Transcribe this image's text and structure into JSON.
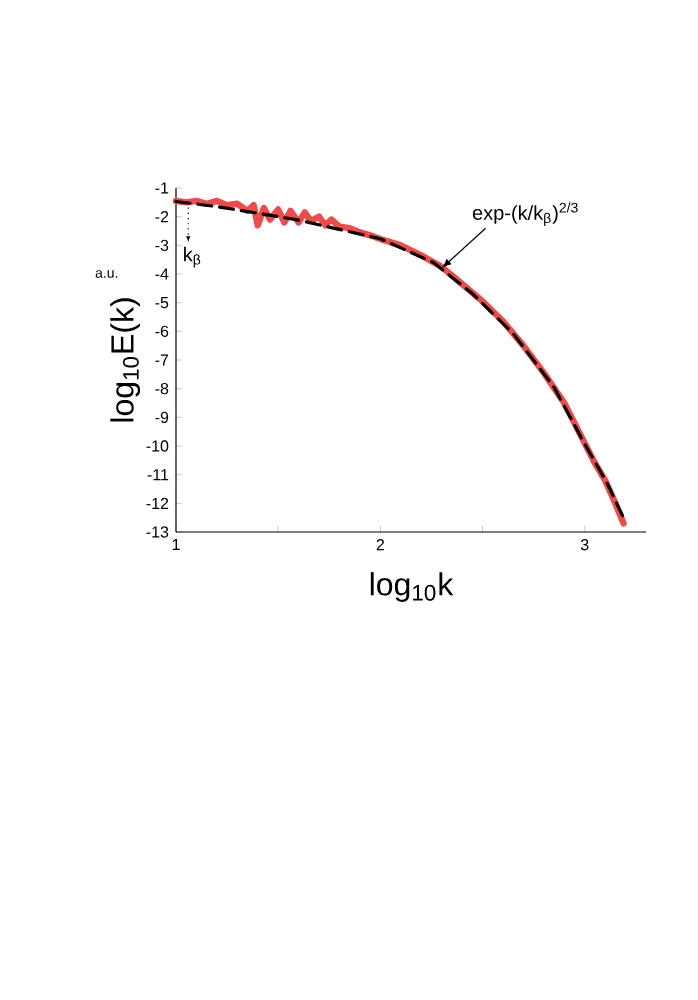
{
  "chart_data": {
    "type": "line",
    "xlabel": "log$_{10}$k",
    "ylabel": "log$_{10}$E(k)",
    "xlim": [
      1,
      3.3
    ],
    "ylim": [
      -13,
      -1
    ],
    "xticks": [
      1,
      {
        "value": 1.5,
        "label": null
      },
      2,
      {
        "value": 2.5,
        "label": null
      },
      3
    ],
    "yticks": [
      -1,
      -2,
      -3,
      -4,
      -5,
      -6,
      -7,
      -8,
      -9,
      -10,
      -11,
      -12,
      -13
    ],
    "marker": "none",
    "series": [
      {
        "color": "#f04a4a",
        "line_style": "solid",
        "x": [
          1.0,
          1.05,
          1.1,
          1.15,
          1.2,
          1.25,
          1.3,
          1.35,
          1.38,
          1.4,
          1.43,
          1.46,
          1.5,
          1.53,
          1.56,
          1.6,
          1.63,
          1.66,
          1.7,
          1.73,
          1.76,
          1.8,
          1.85,
          1.9,
          1.95,
          2.0,
          2.1,
          2.2,
          2.3,
          2.4,
          2.5,
          2.6,
          2.7,
          2.8,
          2.9,
          3.0,
          3.05,
          3.1,
          3.15,
          3.19
        ],
        "values": [
          -1.45,
          -1.5,
          -1.45,
          -1.55,
          -1.45,
          -1.6,
          -1.55,
          -1.8,
          -1.6,
          -2.3,
          -1.7,
          -2.1,
          -1.75,
          -2.2,
          -1.8,
          -2.2,
          -1.85,
          -2.15,
          -2.0,
          -2.3,
          -2.1,
          -2.35,
          -2.4,
          -2.55,
          -2.65,
          -2.78,
          -3.0,
          -3.35,
          -3.75,
          -4.35,
          -4.95,
          -5.65,
          -6.5,
          -7.45,
          -8.5,
          -9.9,
          -10.6,
          -11.2,
          -12.0,
          -12.7
        ]
      },
      {
        "color": "#000000",
        "line_style": "dashed",
        "x": [
          1.0,
          1.2,
          1.41,
          1.6,
          1.74,
          2.0,
          2.26,
          2.45,
          2.65,
          2.85,
          3.0,
          3.11,
          3.19
        ],
        "values": [
          -1.47,
          -1.65,
          -1.89,
          -2.12,
          -2.35,
          -2.77,
          -3.6,
          -4.68,
          -6.08,
          -7.95,
          -9.93,
          -11.3,
          -12.5
        ]
      }
    ],
    "annotations": [
      {
        "text": "exp-(k/k$_{β}$)$^{2/3}$",
        "x": 2.3,
        "y": -3.8
      },
      {
        "text": "k$_{β}$",
        "x": 1.06,
        "y": -1.5
      },
      "a.u."
    ]
  }
}
